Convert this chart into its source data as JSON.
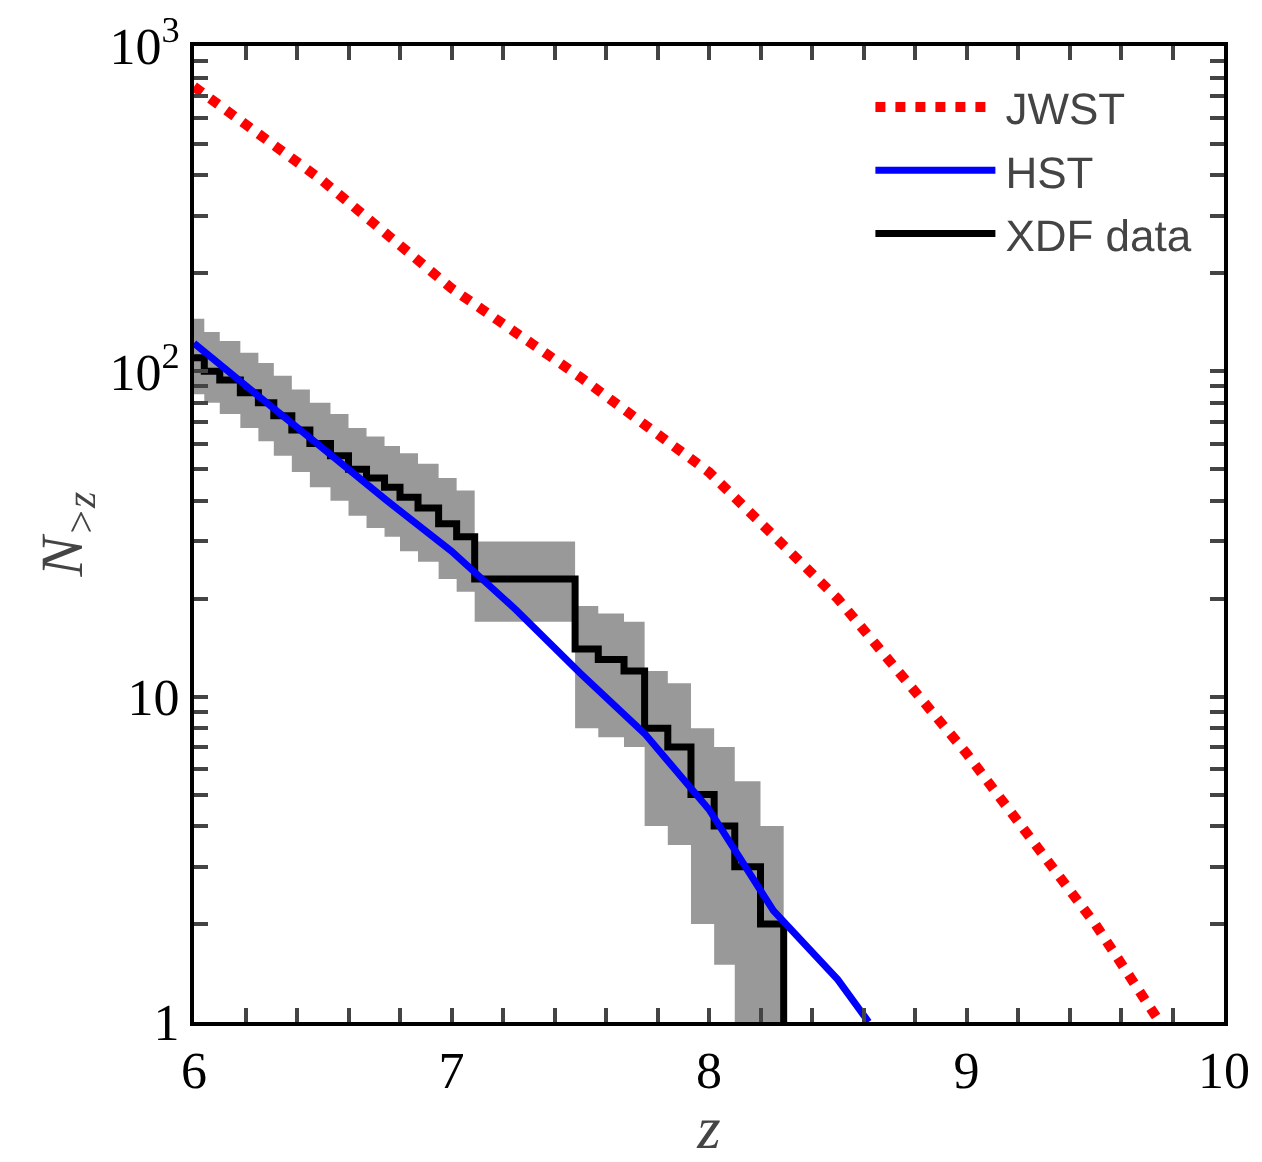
{
  "chart_data": {
    "type": "line",
    "xlabel": "z",
    "ylabel": "N$_{>z}$",
    "log": "y",
    "legend": "top right",
    "grid": false,
    "xlim": [
      6,
      10
    ],
    "ylim": [
      1,
      1000
    ],
    "xticks": [
      6,
      {
        "value": 6.2,
        "label": null
      },
      {
        "value": 6.4,
        "label": null
      },
      {
        "value": 6.6,
        "label": null
      },
      {
        "value": 6.8,
        "label": null
      },
      7,
      {
        "value": 7.2,
        "label": null
      },
      {
        "value": 7.4,
        "label": null
      },
      {
        "value": 7.6,
        "label": null
      },
      {
        "value": 7.8,
        "label": null
      },
      8,
      {
        "value": 8.2,
        "label": null
      },
      {
        "value": 8.4,
        "label": null
      },
      {
        "value": 8.6,
        "label": null
      },
      {
        "value": 8.8,
        "label": null
      },
      9,
      {
        "value": 9.2,
        "label": null
      },
      {
        "value": 9.4,
        "label": null
      },
      {
        "value": 9.6,
        "label": null
      },
      {
        "value": 9.8,
        "label": null
      },
      10
    ],
    "yticks": [
      1,
      {
        "value": 2,
        "label": null
      },
      {
        "value": 3,
        "label": null
      },
      {
        "value": 4,
        "label": null
      },
      {
        "value": 5,
        "label": null
      },
      {
        "value": 6,
        "label": null
      },
      {
        "value": 7,
        "label": null
      },
      {
        "value": 8,
        "label": null
      },
      {
        "value": 9,
        "label": null
      },
      10,
      {
        "value": 20,
        "label": null
      },
      {
        "value": 30,
        "label": null
      },
      {
        "value": 40,
        "label": null
      },
      {
        "value": 50,
        "label": null
      },
      {
        "value": 60,
        "label": null
      },
      {
        "value": 70,
        "label": null
      },
      {
        "value": 80,
        "label": null
      },
      {
        "value": 90,
        "label": null
      },
      {
        "value": 100,
        "label": "10$^{2}$"
      },
      {
        "value": 200,
        "label": null
      },
      {
        "value": 300,
        "label": null
      },
      {
        "value": 400,
        "label": null
      },
      {
        "value": 500,
        "label": null
      },
      {
        "value": 600,
        "label": null
      },
      {
        "value": 700,
        "label": null
      },
      {
        "value": 800,
        "label": null
      },
      {
        "value": 900,
        "label": null
      },
      {
        "value": 1000,
        "label": "10$^{3}$"
      }
    ],
    "series": [
      {
        "name": "XDF data",
        "type": "step",
        "color": "#000000",
        "line_style": "solid",
        "x": [
          6.0,
          6.04,
          6.1,
          6.18,
          6.25,
          6.31,
          6.38,
          6.45,
          6.53,
          6.6,
          6.67,
          6.74,
          6.8,
          6.87,
          6.95,
          7.02,
          7.09,
          7.48,
          7.57,
          7.67,
          7.75,
          7.84,
          7.93,
          8.02,
          8.1,
          8.2,
          8.29,
          8.29
        ],
        "values": [
          110,
          100,
          94,
          86,
          80,
          73,
          66,
          60,
          55,
          50,
          47,
          44,
          41,
          38,
          34,
          31,
          23,
          14,
          13,
          12,
          8,
          7,
          5,
          4,
          3,
          2,
          1,
          1
        ],
        "lower": [
          85,
          80,
          74,
          67,
          61,
          55,
          49,
          44,
          40,
          36,
          33,
          31,
          28,
          26,
          23,
          21,
          17,
          8,
          7.5,
          7,
          4,
          3.5,
          2,
          1.5,
          1,
          1,
          1,
          1
        ],
        "upper": [
          145,
          132,
          124,
          114,
          106,
          97,
          88,
          80,
          74,
          67,
          63,
          59,
          56,
          52,
          47,
          43,
          30,
          19,
          18,
          17,
          12,
          11,
          8,
          7,
          5.5,
          4,
          3,
          3
        ]
      },
      {
        "name": "HST",
        "color": "#0000ff",
        "line_style": "solid",
        "x": [
          6,
          6.25,
          6.5,
          6.75,
          7,
          7.25,
          7.5,
          7.75,
          8,
          8.25,
          8.5,
          8.62
        ],
        "values": [
          122,
          84,
          58,
          40,
          28,
          18.5,
          11.8,
          7.7,
          4.5,
          2.2,
          1.35,
          1
        ]
      },
      {
        "name": "JWST",
        "color": "#ff0000",
        "line_style": "dotted",
        "x": [
          6,
          6.5,
          7,
          7.5,
          8,
          8.5,
          9,
          9.5,
          9.75
        ],
        "values": [
          750,
          385,
          180,
          96,
          49,
          20,
          6.7,
          2.0,
          1
        ]
      }
    ]
  }
}
